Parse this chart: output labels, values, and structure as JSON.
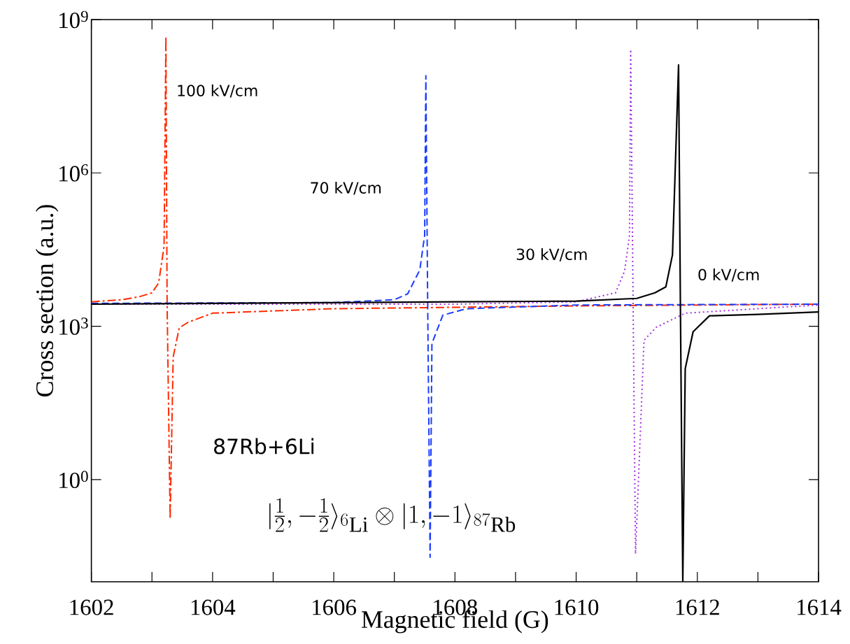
{
  "chart_data": {
    "type": "line",
    "xlabel": "Magnetic field (G)",
    "ylabel": "Cross section (a.u.)",
    "log": "y",
    "xlim": [
      1602,
      1614
    ],
    "ylim": [
      0.01,
      1000000000
    ],
    "xticks": [
      1602,
      {
        "value": 1603,
        "label": null
      },
      1604,
      {
        "value": 1605,
        "label": null
      },
      1606,
      {
        "value": 1607,
        "label": null
      },
      1608,
      {
        "value": 1609,
        "label": null
      },
      1610,
      {
        "value": 1611,
        "label": null
      },
      1612,
      {
        "value": 1613,
        "label": null
      },
      1614
    ],
    "yticks": [
      {
        "value": 1,
        "label": "10$^{0}$"
      },
      {
        "value": 1000,
        "label": "10$^{3}$"
      },
      {
        "value": 1000000,
        "label": "10$^{6}$"
      },
      {
        "value": 1000000000,
        "label": "10$^{9}$"
      }
    ],
    "grid": false,
    "marker": "none",
    "series": [
      {
        "color": "#ff2a00",
        "line_style": "dashdot",
        "x": [
          1602,
          1602.5,
          1602.8,
          1603.0,
          1603.11,
          1603.2,
          1603.23,
          1603.25,
          1603.3,
          1603.35,
          1603.45,
          1603.6,
          1604,
          1606,
          1610,
          1614
        ],
        "values": [
          3000,
          3300,
          3800,
          4500,
          7000,
          37000,
          470000000,
          2600,
          0.17,
          250,
          930,
          1200,
          1800,
          2200,
          2500,
          2700
        ]
      },
      {
        "color": "#1a3cff",
        "line_style": "dashed",
        "x": [
          1602,
          1606,
          1607,
          1607.22,
          1607.42,
          1607.5,
          1607.52,
          1607.55,
          1607.59,
          1607.62,
          1607.8,
          1608.19,
          1610,
          1614
        ],
        "values": [
          2800,
          2900,
          3300,
          4300,
          12600,
          60000,
          80000000,
          2700,
          0.03,
          460,
          1650,
          2200,
          2600,
          2700
        ]
      },
      {
        "color": "#a030e0",
        "line_style": "dotted",
        "x": [
          1602,
          1608,
          1610,
          1610.65,
          1610.8,
          1610.88,
          1610.9,
          1610.94,
          1610.98,
          1611.12,
          1611.32,
          1611.8,
          1614
        ],
        "values": [
          2700,
          2700,
          3000,
          4500,
          12000,
          60000,
          260000000,
          2700,
          0.035,
          530,
          950,
          1800,
          2600
        ]
      },
      {
        "color": "#000000",
        "line_style": "solid",
        "x": [
          1602,
          1608,
          1610,
          1611,
          1611.3,
          1611.48,
          1611.59,
          1611.69,
          1611.72,
          1611.76,
          1611.8,
          1611.93,
          1612.2,
          1613,
          1614
        ],
        "values": [
          2700,
          3000,
          3100,
          3500,
          4500,
          5900,
          25000,
          130000000,
          3000,
          0.01,
          148,
          780,
          1600,
          1700,
          1900
        ]
      }
    ],
    "annotations": [
      "100 kV/cm",
      "70 kV/cm",
      "30 kV/cm",
      "0 kV/cm",
      "87Rb+6Li",
      "|\\tfrac{1}{2},-\\tfrac{1}{2}\\rangle_{^{6}\\mathrm{Li}}\\otimes|1,-1\\rangle_{^{87}\\mathrm{Rb}}"
    ]
  }
}
